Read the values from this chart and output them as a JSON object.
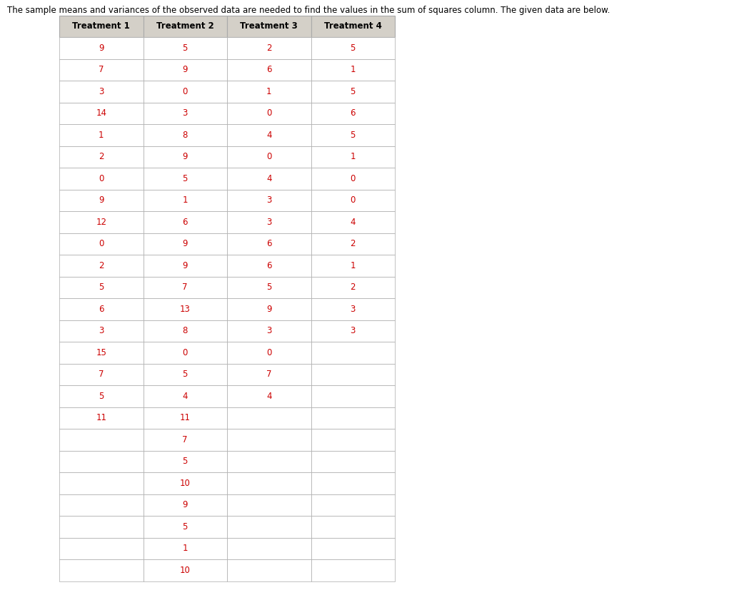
{
  "title": "The sample means and variances of the observed data are needed to find the values in the sum of squares column. The given data are below.",
  "headers": [
    "Treatment 1",
    "Treatment 2",
    "Treatment 3",
    "Treatment 4"
  ],
  "treatment1": [
    9,
    7,
    3,
    14,
    1,
    2,
    0,
    9,
    12,
    0,
    2,
    5,
    6,
    3,
    15,
    7,
    5,
    11
  ],
  "treatment2": [
    5,
    9,
    0,
    3,
    8,
    9,
    5,
    1,
    6,
    9,
    9,
    7,
    13,
    8,
    0,
    5,
    4,
    11,
    7,
    5,
    10,
    9,
    5,
    1,
    10
  ],
  "treatment3": [
    2,
    6,
    1,
    0,
    4,
    0,
    4,
    3,
    3,
    6,
    6,
    5,
    9,
    3,
    0,
    7,
    4
  ],
  "treatment4": [
    5,
    1,
    5,
    6,
    5,
    1,
    0,
    0,
    4,
    2,
    1,
    2,
    3,
    3
  ],
  "header_bg": "#d4d0c8",
  "cell_bg": "#ffffff",
  "header_text_color": "#000000",
  "data_text_color": "#cc0000",
  "border_color": "#aaaaaa",
  "title_fontsize": 8.5,
  "header_fontsize": 8.5,
  "data_fontsize": 8.5
}
